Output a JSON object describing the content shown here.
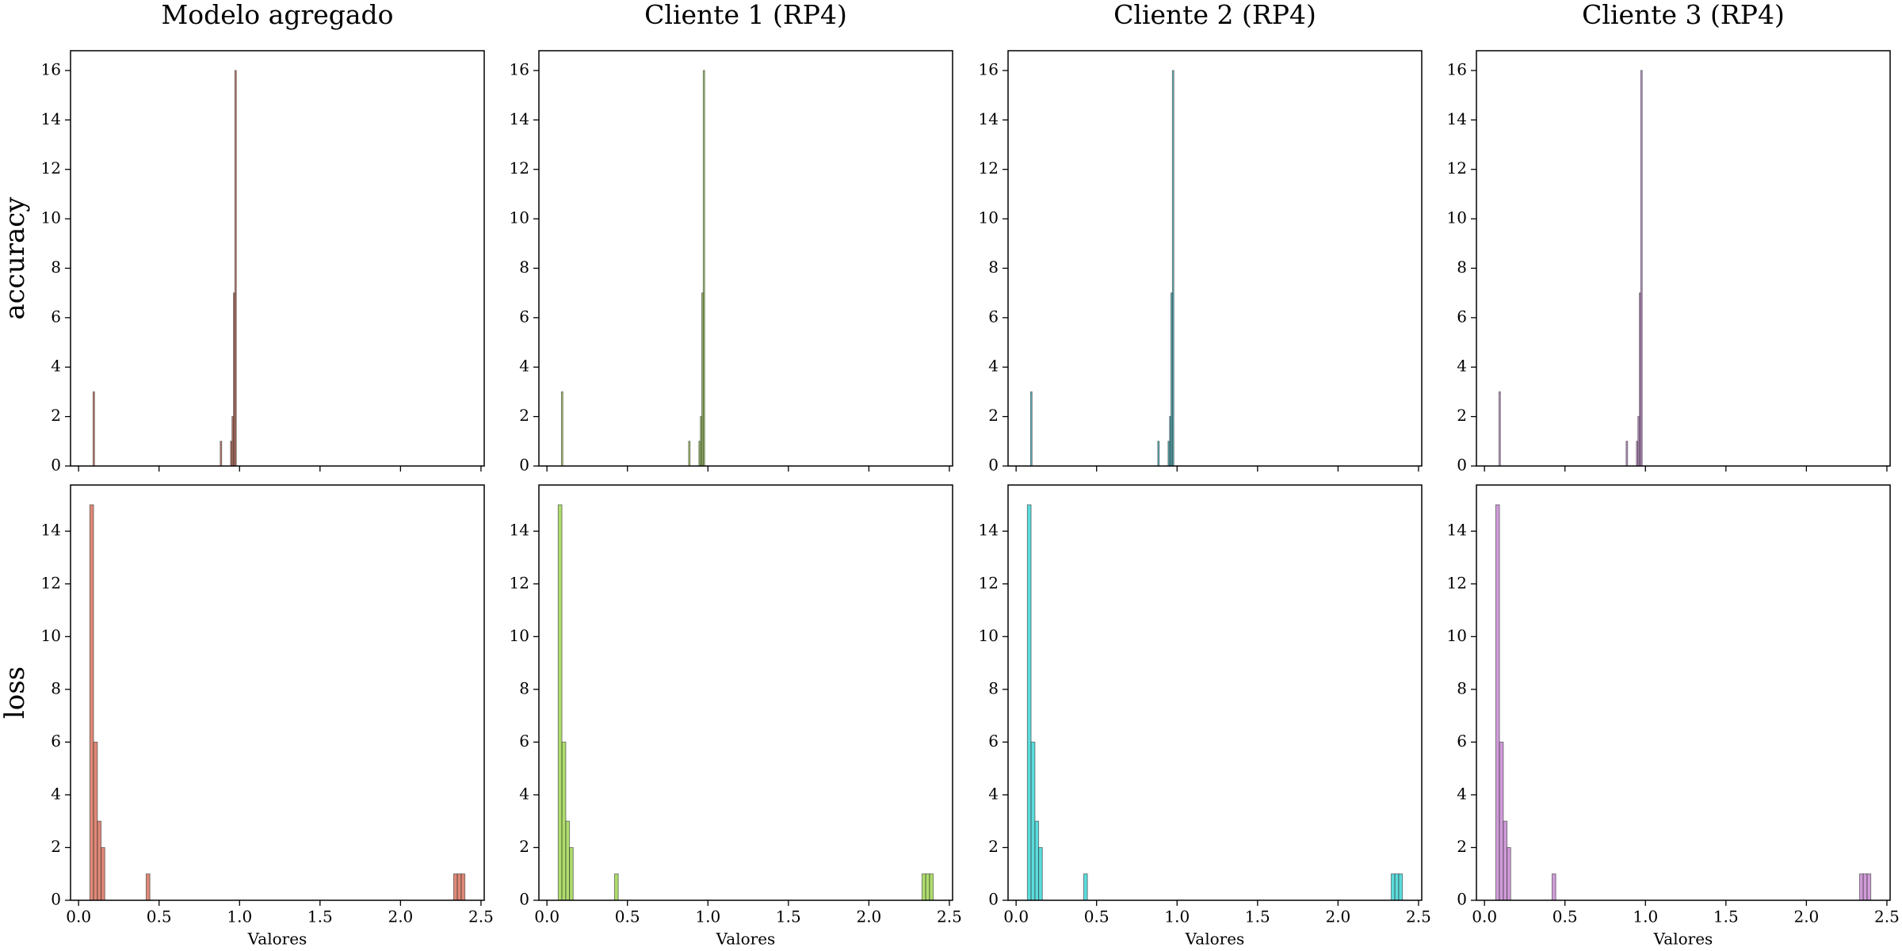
{
  "chart_data": [
    {
      "type": "histogram",
      "title": "Modelo agregado",
      "ylabel": "accuracy",
      "color": "#b5533c",
      "bins": [
        0.09,
        0.099,
        0.88,
        0.889,
        0.944,
        0.953,
        0.962,
        0.971,
        0.98
      ],
      "counts": [
        3,
        0,
        1,
        0,
        1,
        2,
        7,
        16
      ],
      "xlim": [
        -0.05,
        2.52
      ],
      "xticks": [
        0,
        0.5,
        1,
        1.5,
        2,
        2.5
      ],
      "show_xtick_labels": false,
      "ylim": [
        0,
        16.8
      ],
      "yticks": [
        0,
        2,
        4,
        6,
        8,
        10,
        12,
        14,
        16
      ]
    },
    {
      "type": "histogram",
      "title": "Cliente 1 (RP4)",
      "color": "#8fbf3f",
      "bins": [
        0.09,
        0.099,
        0.88,
        0.889,
        0.944,
        0.953,
        0.962,
        0.971,
        0.98
      ],
      "counts": [
        3,
        0,
        1,
        0,
        1,
        2,
        7,
        16
      ],
      "xlim": [
        -0.05,
        2.52
      ],
      "xticks": [
        0,
        0.5,
        1,
        1.5,
        2,
        2.5
      ],
      "show_xtick_labels": false,
      "ylim": [
        0,
        16.8
      ],
      "yticks": [
        0,
        2,
        4,
        6,
        8,
        10,
        12,
        14,
        16
      ]
    },
    {
      "type": "histogram",
      "title": "Cliente 2 (RP4)",
      "color": "#2aa8b3",
      "bins": [
        0.09,
        0.099,
        0.88,
        0.889,
        0.944,
        0.953,
        0.962,
        0.971,
        0.98
      ],
      "counts": [
        3,
        0,
        1,
        0,
        1,
        2,
        7,
        16
      ],
      "xlim": [
        -0.05,
        2.52
      ],
      "xticks": [
        0,
        0.5,
        1,
        1.5,
        2,
        2.5
      ],
      "show_xtick_labels": false,
      "ylim": [
        0,
        16.8
      ],
      "yticks": [
        0,
        2,
        4,
        6,
        8,
        10,
        12,
        14,
        16
      ]
    },
    {
      "type": "histogram",
      "title": "Cliente 3 (RP4)",
      "color": "#b779c4",
      "bins": [
        0.09,
        0.099,
        0.88,
        0.889,
        0.944,
        0.953,
        0.962,
        0.971,
        0.98
      ],
      "counts": [
        3,
        0,
        1,
        0,
        1,
        2,
        7,
        16
      ],
      "xlim": [
        -0.05,
        2.52
      ],
      "xticks": [
        0,
        0.5,
        1,
        1.5,
        2,
        2.5
      ],
      "show_xtick_labels": false,
      "ylim": [
        0,
        16.8
      ],
      "yticks": [
        0,
        2,
        4,
        6,
        8,
        10,
        12,
        14,
        16
      ]
    },
    {
      "type": "histogram",
      "ylabel": "loss",
      "xlabel": "Valores",
      "color": "#d4604a",
      "bins": [
        0.07,
        0.093,
        0.117,
        0.14,
        0.163,
        0.42,
        0.443,
        2.33,
        2.353,
        2.377,
        2.4
      ],
      "counts": [
        15,
        6,
        3,
        2,
        0,
        1,
        0,
        1,
        1,
        1
      ],
      "xlim": [
        -0.05,
        2.52
      ],
      "xticks": [
        {
          "value": 0,
          "label": "0.0"
        },
        0.5,
        {
          "value": 1,
          "label": "1.0"
        },
        1.5,
        {
          "value": 2,
          "label": "2.0"
        },
        2.5
      ],
      "show_xtick_labels": true,
      "ylim": [
        0,
        15.75
      ],
      "yticks": [
        0,
        2,
        4,
        6,
        8,
        10,
        12,
        14
      ]
    },
    {
      "type": "histogram",
      "xlabel": "Valores",
      "color": "#94d13c",
      "bins": [
        0.07,
        0.093,
        0.117,
        0.14,
        0.163,
        0.42,
        0.443,
        2.33,
        2.353,
        2.377,
        2.4
      ],
      "counts": [
        15,
        6,
        3,
        2,
        0,
        1,
        0,
        1,
        1,
        1
      ],
      "xlim": [
        -0.05,
        2.52
      ],
      "xticks": [
        {
          "value": 0,
          "label": "0.0"
        },
        0.5,
        {
          "value": 1,
          "label": "1.0"
        },
        1.5,
        {
          "value": 2,
          "label": "2.0"
        },
        2.5
      ],
      "show_xtick_labels": true,
      "ylim": [
        0,
        15.75
      ],
      "yticks": [
        0,
        2,
        4,
        6,
        8,
        10,
        12,
        14
      ]
    },
    {
      "type": "histogram",
      "xlabel": "Valores",
      "color": "#26d0d0",
      "bins": [
        0.07,
        0.093,
        0.117,
        0.14,
        0.163,
        0.42,
        0.443,
        2.33,
        2.353,
        2.377,
        2.4
      ],
      "counts": [
        15,
        6,
        3,
        2,
        0,
        1,
        0,
        1,
        1,
        1
      ],
      "xlim": [
        -0.05,
        2.52
      ],
      "xticks": [
        {
          "value": 0,
          "label": "0.0"
        },
        0.5,
        {
          "value": 1,
          "label": "1.0"
        },
        1.5,
        {
          "value": 2,
          "label": "2.0"
        },
        2.5
      ],
      "show_xtick_labels": true,
      "ylim": [
        0,
        15.75
      ],
      "yticks": [
        0,
        2,
        4,
        6,
        8,
        10,
        12,
        14
      ]
    },
    {
      "type": "histogram",
      "xlabel": "Valores",
      "color": "#c07acc",
      "bins": [
        0.07,
        0.093,
        0.117,
        0.14,
        0.163,
        0.42,
        0.443,
        2.33,
        2.353,
        2.377,
        2.4
      ],
      "counts": [
        15,
        6,
        3,
        2,
        0,
        1,
        0,
        1,
        1,
        1
      ],
      "xlim": [
        -0.05,
        2.52
      ],
      "xticks": [
        {
          "value": 0,
          "label": "0.0"
        },
        0.5,
        {
          "value": 1,
          "label": "1.0"
        },
        1.5,
        {
          "value": 2,
          "label": "2.0"
        },
        2.5
      ],
      "show_xtick_labels": true,
      "ylim": [
        0,
        15.75
      ],
      "yticks": [
        0,
        2,
        4,
        6,
        8,
        10,
        12,
        14
      ]
    }
  ]
}
